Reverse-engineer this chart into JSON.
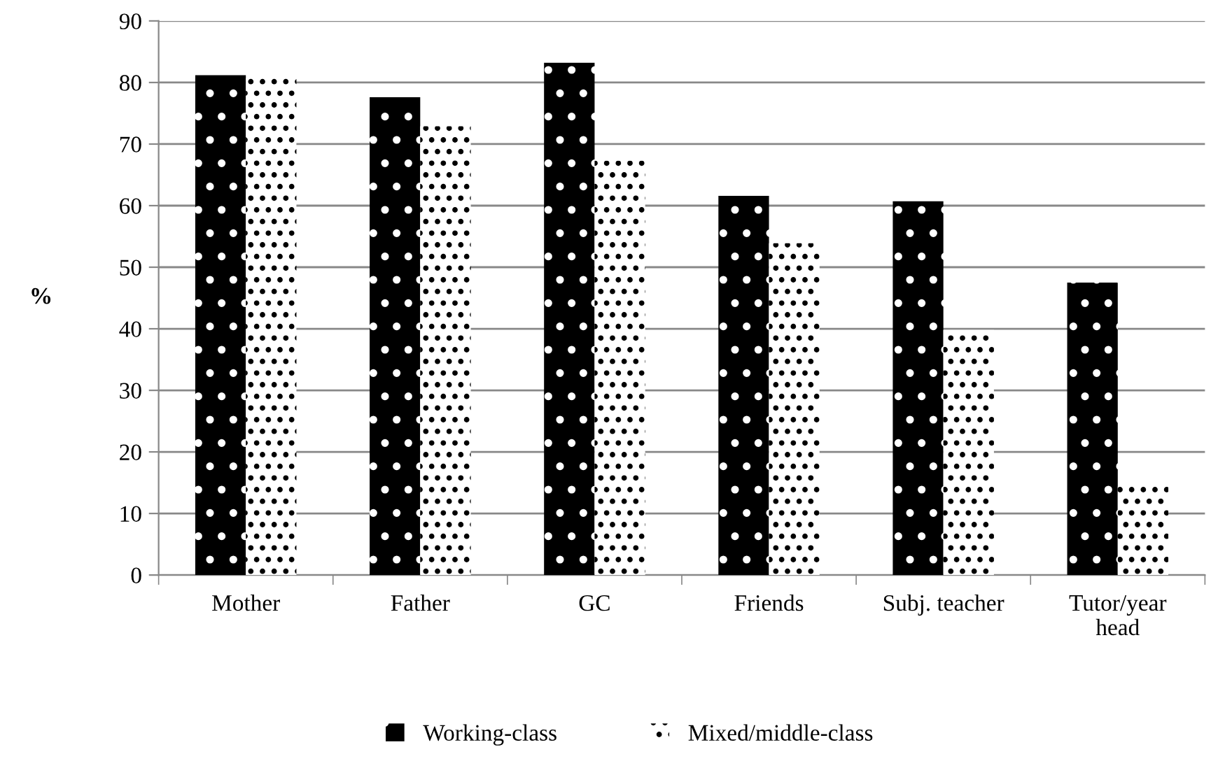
{
  "chart_data": {
    "type": "bar",
    "ylabel": "%",
    "categories": [
      "Mother",
      "Father",
      "GC",
      "Friends",
      "Subj. teacher",
      "Tutor/year\nhead"
    ],
    "series": [
      {
        "name": "Working-class",
        "color": "#000000",
        "values": [
          81.2,
          77.6,
          83.2,
          61.6,
          60.7,
          47.5
        ]
      },
      {
        "name": "Mixed/middle-class",
        "color": "#ffffff",
        "values": [
          80.7,
          72.9,
          67.3,
          53.9,
          39.8,
          14.4
        ]
      }
    ],
    "ylim": [
      0,
      90
    ],
    "yticks": [
      0,
      10,
      20,
      30,
      40,
      50,
      60,
      70,
      80,
      90
    ],
    "grid": "y",
    "legend": "bottom"
  }
}
